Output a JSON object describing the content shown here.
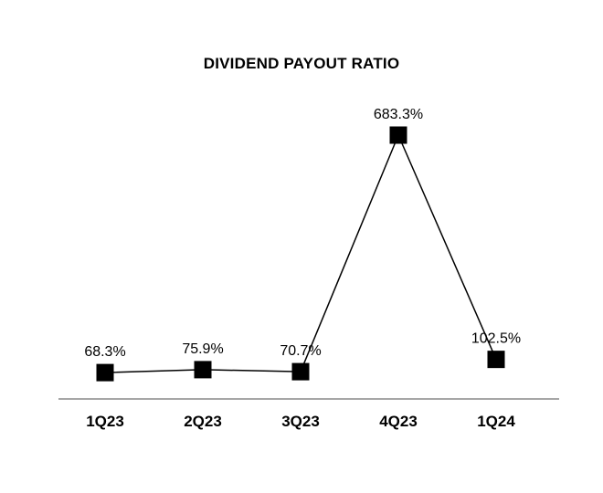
{
  "chart_data": {
    "type": "line",
    "title": "DIVIDEND PAYOUT RATIO",
    "categories": [
      "1Q23",
      "2Q23",
      "3Q23",
      "4Q23",
      "1Q24"
    ],
    "values": [
      68.3,
      75.9,
      70.7,
      683.3,
      102.5
    ],
    "data_labels": [
      "68.3%",
      "75.9%",
      "70.7%",
      "683.3%",
      "102.5%"
    ],
    "ylim": [
      0,
      750
    ],
    "xlabel": "",
    "ylabel": "",
    "grid": false,
    "legend_position": "none",
    "marker_shape": "square",
    "line_color": "#000000",
    "marker_color": "#000000",
    "axis_line_color": "#a6a6a6",
    "background_color": "#ffffff"
  }
}
